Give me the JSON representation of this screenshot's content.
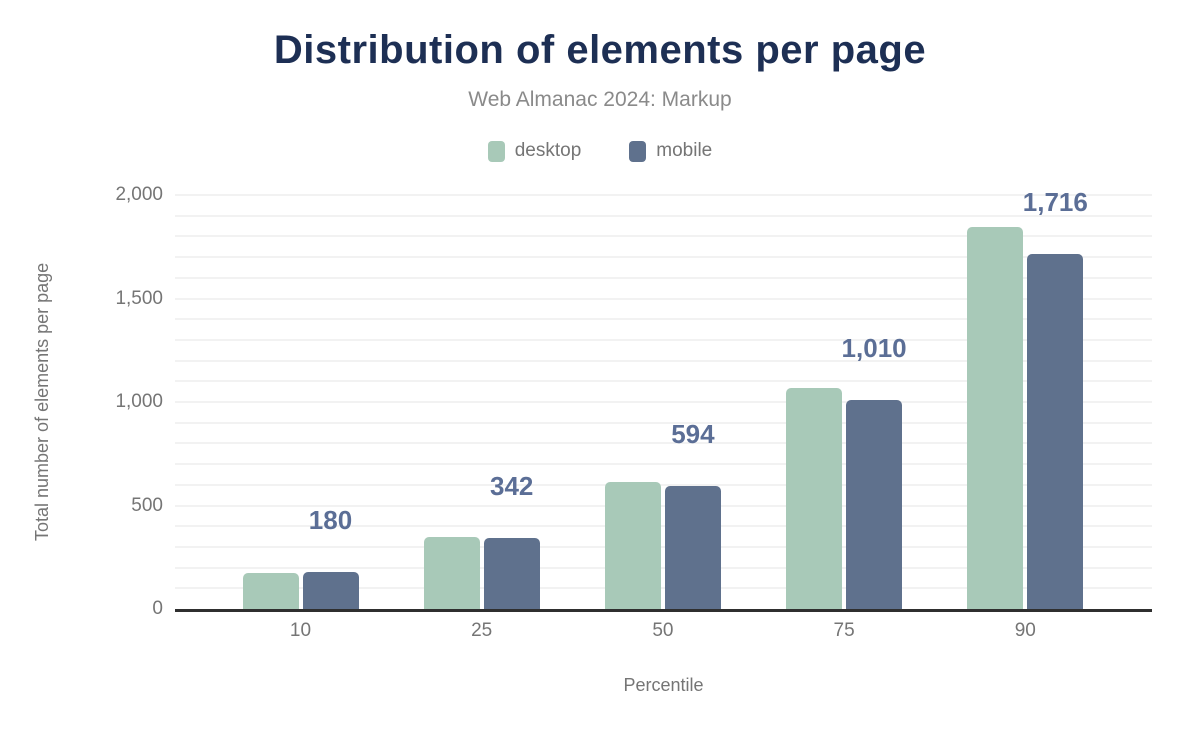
{
  "chart": {
    "title": "Distribution of elements per page",
    "subtitle": "Web Almanac 2024: Markup"
  },
  "chart_data": {
    "type": "bar",
    "title": "Distribution of elements per page",
    "subtitle": "Web Almanac 2024: Markup",
    "xlabel": "Percentile",
    "ylabel": "Total number of elements per page",
    "categories": [
      "10",
      "25",
      "50",
      "75",
      "90"
    ],
    "series": [
      {
        "name": "desktop",
        "color": "#a8c9b8",
        "values": [
          175,
          349,
          616,
          1069,
          1844
        ]
      },
      {
        "name": "mobile",
        "color": "#5f718d",
        "values": [
          180,
          342,
          594,
          1010,
          1716
        ]
      }
    ],
    "data_labels": {
      "series": "mobile",
      "values": [
        "180",
        "342",
        "594",
        "1,010",
        "1,716"
      ],
      "color": "#5b6e96"
    },
    "ylim": [
      0,
      2000
    ],
    "y_ticks": [
      {
        "value": 0,
        "label": "0"
      },
      {
        "value": 500,
        "label": "500"
      },
      {
        "value": 1000,
        "label": "1,000"
      },
      {
        "value": 1500,
        "label": "1,500"
      },
      {
        "value": 2000,
        "label": "2,000"
      }
    ],
    "grid": {
      "minor_step": 100,
      "color": "#f2f2f2",
      "horizontal": true,
      "vertical": false
    },
    "legend_position": "top",
    "title_color": "#1d2f54",
    "axis_text_color": "#757575"
  }
}
